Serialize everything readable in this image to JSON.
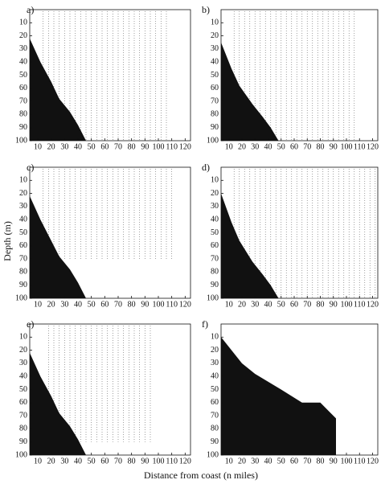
{
  "figure": {
    "ylabel": "Depth (m)",
    "xlabel": "Distance from coast (n miles)"
  },
  "chart_data": [
    {
      "type": "section",
      "title": "a)",
      "xlim": [
        4,
        124
      ],
      "xticks": [
        10,
        20,
        30,
        40,
        50,
        60,
        70,
        80,
        90,
        100,
        110,
        120
      ],
      "ylim": [
        0,
        100
      ],
      "yticks": [
        10,
        20,
        30,
        40,
        50,
        60,
        70,
        80,
        90,
        100
      ],
      "y_inverted": true,
      "bathymetry": {
        "x": [
          4,
          12,
          20,
          26,
          34,
          40,
          46
        ],
        "depth": [
          22,
          40,
          55,
          68,
          78,
          88,
          100
        ],
        "color": "#111111"
      },
      "stations": [
        14,
        18,
        22,
        26,
        30,
        34,
        38,
        42,
        46,
        50,
        54,
        58,
        62,
        66,
        70,
        74,
        78,
        82,
        86,
        90,
        94,
        98,
        102,
        106
      ],
      "station_depth": 100
    },
    {
      "type": "section",
      "title": "b)",
      "xlim": [
        4,
        124
      ],
      "xticks": [
        10,
        20,
        30,
        40,
        50,
        60,
        70,
        80,
        90,
        100,
        110,
        120
      ],
      "ylim": [
        0,
        100
      ],
      "yticks": [
        10,
        20,
        30,
        40,
        50,
        60,
        70,
        80,
        90,
        100
      ],
      "y_inverted": true,
      "bathymetry": {
        "x": [
          4,
          12,
          18,
          28,
          36,
          42,
          48
        ],
        "depth": [
          25,
          45,
          58,
          72,
          82,
          90,
          100
        ],
        "color": "#111111"
      },
      "stations": [
        14,
        18,
        22,
        26,
        30,
        34,
        38,
        42,
        46,
        50,
        54,
        58,
        62,
        66,
        70,
        74,
        78,
        82,
        86,
        90,
        94,
        98,
        102,
        106
      ],
      "station_depth": 100
    },
    {
      "type": "section",
      "title": "c)",
      "xlim": [
        4,
        124
      ],
      "xticks": [
        10,
        20,
        30,
        40,
        50,
        60,
        70,
        80,
        90,
        100,
        110,
        120
      ],
      "ylim": [
        0,
        100
      ],
      "yticks": [
        10,
        20,
        30,
        40,
        50,
        60,
        70,
        80,
        90,
        100
      ],
      "y_inverted": true,
      "bathymetry": {
        "x": [
          4,
          12,
          20,
          26,
          34,
          40,
          46
        ],
        "depth": [
          22,
          40,
          56,
          68,
          78,
          88,
          100
        ],
        "color": "#111111"
      },
      "stations": [
        14,
        18,
        22,
        26,
        30,
        34,
        38,
        42,
        46,
        50,
        54,
        58,
        62,
        66,
        70,
        74,
        78,
        82,
        86,
        90,
        94,
        98,
        102,
        106,
        110
      ],
      "station_depth": 70
    },
    {
      "type": "section",
      "title": "d)",
      "xlim": [
        4,
        124
      ],
      "xticks": [
        10,
        20,
        30,
        40,
        50,
        60,
        70,
        80,
        90,
        100,
        110,
        120
      ],
      "ylim": [
        0,
        100
      ],
      "yticks": [
        10,
        20,
        30,
        40,
        50,
        60,
        70,
        80,
        90,
        100
      ],
      "y_inverted": true,
      "bathymetry": {
        "x": [
          4,
          12,
          18,
          28,
          36,
          42,
          48
        ],
        "depth": [
          20,
          42,
          56,
          72,
          82,
          90,
          100
        ],
        "color": "#111111"
      },
      "stations": [
        14,
        18,
        22,
        26,
        30,
        34,
        38,
        42,
        46,
        50,
        54,
        58,
        62,
        66,
        70,
        74,
        78,
        82,
        86,
        90,
        94,
        98,
        102,
        106,
        110,
        114,
        118,
        122
      ],
      "station_depth": 100
    },
    {
      "type": "section",
      "title": "e)",
      "xlim": [
        4,
        124
      ],
      "xticks": [
        10,
        20,
        30,
        40,
        50,
        60,
        70,
        80,
        90,
        100,
        110,
        120
      ],
      "ylim": [
        0,
        100
      ],
      "yticks": [
        10,
        20,
        30,
        40,
        50,
        60,
        70,
        80,
        90,
        100
      ],
      "y_inverted": true,
      "bathymetry": {
        "x": [
          4,
          12,
          20,
          26,
          34,
          40,
          46
        ],
        "depth": [
          22,
          40,
          55,
          68,
          78,
          88,
          100
        ],
        "color": "#111111"
      },
      "stations": [
        18,
        22,
        26,
        30,
        34,
        38,
        42,
        46,
        50,
        54,
        58,
        62,
        66,
        70,
        74,
        78,
        82,
        86,
        90,
        94
      ],
      "station_depth": 90
    },
    {
      "type": "section",
      "title": "f)",
      "xlim": [
        4,
        124
      ],
      "xticks": [
        10,
        20,
        30,
        40,
        50,
        60,
        70,
        80,
        90,
        100,
        110,
        120
      ],
      "ylim": [
        0,
        100
      ],
      "yticks": [
        10,
        20,
        30,
        40,
        50,
        60,
        70,
        80,
        90,
        100
      ],
      "y_inverted": true,
      "bathymetry": {
        "x": [
          4,
          20,
          30,
          40,
          50,
          66,
          80,
          88,
          92
        ],
        "depth": [
          10,
          30,
          38,
          44,
          50,
          60,
          60,
          68,
          72
        ],
        "color": "#111111"
      }
    }
  ]
}
